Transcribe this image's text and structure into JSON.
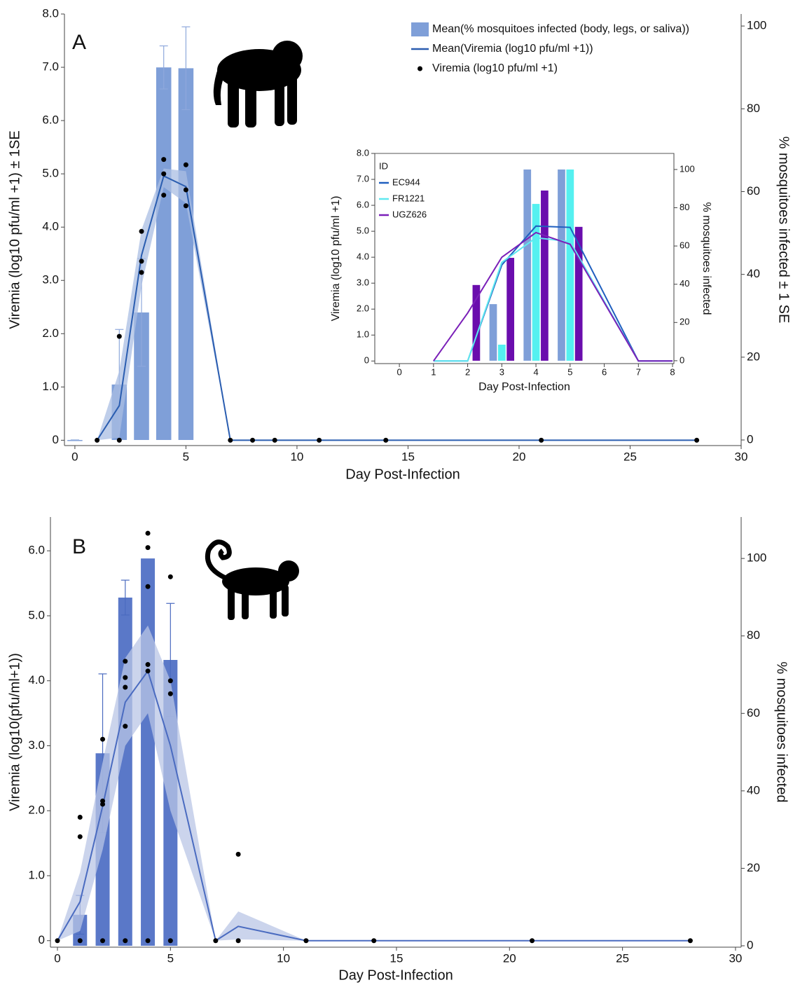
{
  "chart_data": [
    {
      "type": "combo",
      "panel_label": "A",
      "x_label": "Day Post-Infection",
      "y_label": "Viremia (log10 pfu/ml +1) ± 1SE",
      "y2_label": "% mosquitoes infected ± 1 SE",
      "xlim": [
        -0.47,
        30
      ],
      "ylim": [
        -0.1,
        8
      ],
      "y2lim": [
        -1.35,
        102.9
      ],
      "xticks": [
        0,
        5,
        10,
        15,
        20,
        25,
        30
      ],
      "yticks": [
        0,
        {
          "value": 1,
          "label": "1.0"
        },
        {
          "value": 2,
          "label": "2.0"
        },
        {
          "value": 3,
          "label": "3.0"
        },
        {
          "value": 4,
          "label": "4.0"
        },
        {
          "value": 5,
          "label": "5.0"
        },
        {
          "value": 6,
          "label": "6.0"
        },
        {
          "value": 7,
          "label": "7.0"
        },
        {
          "value": 8,
          "label": "8.0"
        }
      ],
      "y2ticks": [
        0,
        20,
        40,
        60,
        80,
        100
      ],
      "legend_position": "upper right",
      "series": [
        {
          "name": "Mean(% mosquitoes infected (body, legs, or saliva))",
          "kind": "bar",
          "axis": "y2",
          "color": "#7f9fd8",
          "error_color": "#8ea8dc",
          "x": [
            0,
            2,
            3,
            4,
            5
          ],
          "values": [
            0,
            13.4,
            30.8,
            90,
            89.8
          ],
          "errors": [
            0,
            13.3,
            13,
            5.2,
            10
          ]
        },
        {
          "name": "Mean(Viremia (log10 pfu/ml +1))",
          "kind": "line",
          "color": "#2a5db0",
          "band_color": "#a9bde3",
          "x": [
            1,
            2,
            3,
            4,
            5,
            7,
            8,
            9,
            11,
            14,
            21,
            28
          ],
          "values": [
            0,
            0.65,
            3.47,
            4.96,
            4.76,
            0,
            0,
            0,
            0,
            0,
            0,
            0
          ],
          "lower": [
            0,
            0.05,
            2.9,
            4.75,
            4.45,
            0,
            0,
            0,
            0,
            0,
            0,
            0
          ],
          "upper": [
            0,
            1.3,
            3.95,
            5.1,
            5.05,
            0,
            0,
            0,
            0,
            0,
            0,
            0
          ]
        },
        {
          "name": "Viremia (log10 pfu/ml +1)",
          "kind": "scatter",
          "color": "#000000",
          "x": [
            1,
            2,
            2,
            3,
            3,
            3,
            4,
            4,
            4,
            5,
            5,
            5,
            7,
            8,
            9,
            11,
            14,
            21,
            28
          ],
          "values": [
            0,
            1.95,
            0,
            3.92,
            3.36,
            3.15,
            5.27,
            5.0,
            4.6,
            5.17,
            4.7,
            4.4,
            0,
            0,
            0,
            0,
            0,
            0,
            0
          ]
        }
      ]
    },
    {
      "type": "combo",
      "x_label": "Day Post-Infection",
      "y_label": "Viremia (log10 pfu/ml +1)",
      "y2_label": "% mosquitoes infected",
      "xlim": [
        -0.72,
        8.04
      ],
      "ylim": [
        -0.1,
        8
      ],
      "y2lim": [
        -1.5,
        108.4
      ],
      "xticks": [
        0,
        1,
        2,
        3,
        4,
        5,
        6,
        7,
        8
      ],
      "yticks": [
        0,
        {
          "value": 1,
          "label": "1.0"
        },
        {
          "value": 2,
          "label": "2.0"
        },
        {
          "value": 3,
          "label": "3.0"
        },
        {
          "value": 4,
          "label": "4.0"
        },
        {
          "value": 5,
          "label": "5.0"
        },
        {
          "value": 6,
          "label": "6.0"
        },
        {
          "value": 7,
          "label": "7.0"
        },
        {
          "value": 8,
          "label": "8.0"
        }
      ],
      "y2ticks": [
        0,
        20,
        40,
        60,
        80,
        100
      ],
      "legend_position": "upper left",
      "legend_title": "ID",
      "series": [
        {
          "kind": "bar",
          "axis": "y2",
          "color": "#7f9fd8",
          "x": [
            3,
            4,
            5
          ],
          "values": [
            29.6,
            100,
            100
          ]
        },
        {
          "kind": "bar",
          "axis": "y2",
          "color": "#55f0f0",
          "x": [
            3,
            4,
            5
          ],
          "values": [
            8.4,
            82,
            100
          ]
        },
        {
          "kind": "bar",
          "axis": "y2",
          "color": "#6a0dad",
          "x": [
            2,
            3,
            4,
            5
          ],
          "values": [
            39.6,
            53.8,
            89,
            70
          ]
        },
        {
          "name": "EC944",
          "kind": "line",
          "color": "#1f5fbf",
          "x": [
            1,
            2,
            3,
            4,
            5,
            7,
            8
          ],
          "values": [
            0,
            0,
            3.7,
            5.2,
            5.15,
            0,
            0
          ]
        },
        {
          "name": "FR1221",
          "kind": "line",
          "color": "#5fe8f0",
          "x": [
            1,
            2,
            3,
            4,
            5,
            7,
            8
          ],
          "values": [
            0,
            0,
            3.8,
            4.75,
            4.6,
            0,
            0
          ]
        },
        {
          "name": "UGZ626",
          "kind": "line",
          "color": "#7a1fb8",
          "x": [
            1,
            2,
            3,
            4,
            5,
            7,
            8
          ],
          "values": [
            0,
            1.85,
            4.0,
            4.95,
            4.5,
            0,
            0
          ]
        }
      ]
    },
    {
      "type": "combo",
      "panel_label": "B",
      "x_label": "Day Post-Infection",
      "y_label": "Viremia (log10(pfu/ml+1))",
      "y2_label": "% mosquitoes infected",
      "xlim": [
        -0.31,
        30.25
      ],
      "ylim": [
        -0.1,
        6.52
      ],
      "y2lim": [
        -0.36,
        110.7
      ],
      "xticks": [
        0,
        5,
        10,
        15,
        20,
        25,
        30
      ],
      "yticks": [
        0,
        {
          "value": 1,
          "label": "1.0"
        },
        {
          "value": 2,
          "label": "2.0"
        },
        {
          "value": 3,
          "label": "3.0"
        },
        {
          "value": 4,
          "label": "4.0"
        },
        {
          "value": 5,
          "label": "5.0"
        },
        {
          "value": 6,
          "label": "6.0"
        }
      ],
      "y2ticks": [
        0,
        20,
        40,
        60,
        80,
        100
      ],
      "series": [
        {
          "kind": "bar",
          "axis": "y2",
          "color": "#5a78c8",
          "error_color": "#4a6bc0",
          "x": [
            1,
            2,
            3,
            4,
            5
          ],
          "values": [
            8,
            49.7,
            89.9,
            100,
            73.8
          ],
          "errors": [
            5,
            20.5,
            4.5,
            null,
            14.6
          ]
        },
        {
          "kind": "line",
          "color": "#4a6bc0",
          "band_color": "#b9c6e6",
          "x": [
            0,
            1,
            2,
            3,
            4,
            5,
            7,
            8,
            11,
            14,
            21,
            28
          ],
          "values": [
            0,
            0.6,
            2.07,
            3.67,
            4.15,
            3.0,
            0,
            0.22,
            0,
            0,
            0,
            0
          ],
          "lower": [
            0,
            0.15,
            1.4,
            3.0,
            3.5,
            2.0,
            0,
            0.02,
            0,
            0,
            0,
            0
          ],
          "upper": [
            0,
            1.05,
            2.75,
            4.35,
            4.85,
            4.0,
            0,
            0.45,
            0,
            0,
            0,
            0
          ]
        },
        {
          "kind": "scatter",
          "color": "#000000",
          "x": [
            0,
            1,
            1,
            1,
            2,
            2,
            2,
            2,
            3,
            3,
            3,
            3,
            3,
            4,
            4,
            4,
            4,
            4,
            4,
            5,
            5,
            5,
            5,
            7,
            8,
            8,
            11,
            14,
            21,
            28
          ],
          "values": [
            0,
            1.9,
            1.6,
            0,
            3.1,
            2.15,
            2.1,
            0,
            4.3,
            4.05,
            3.9,
            3.3,
            0,
            6.27,
            6.05,
            5.45,
            4.25,
            4.15,
            0,
            5.6,
            4.0,
            3.8,
            0,
            0,
            1.33,
            0,
            0,
            0,
            0,
            0
          ]
        }
      ]
    }
  ]
}
